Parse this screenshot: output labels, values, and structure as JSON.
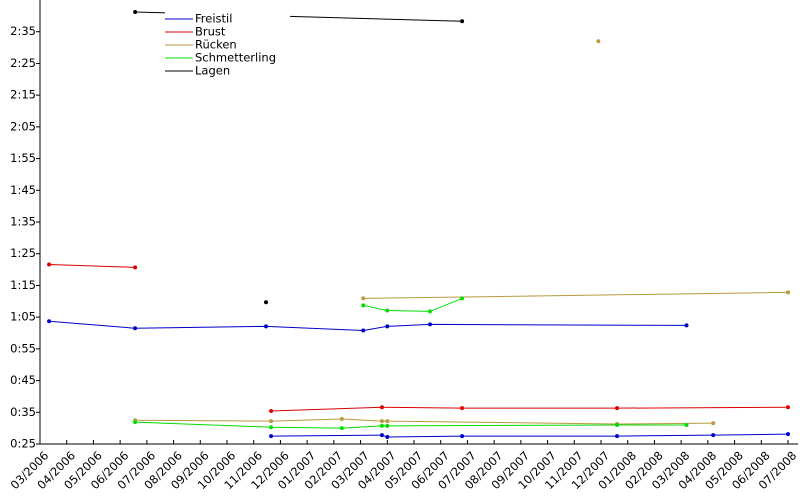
{
  "chart_data": {
    "type": "line",
    "xlim": [
      0,
      28
    ],
    "ylim": [
      25,
      165
    ],
    "xticks": [
      {
        "value": 0,
        "label": "03/2006"
      },
      {
        "value": 1,
        "label": "04/2006"
      },
      {
        "value": 2,
        "label": "05/2006"
      },
      {
        "value": 3,
        "label": "06/2006"
      },
      {
        "value": 4,
        "label": "07/2006"
      },
      {
        "value": 5,
        "label": "08/2006"
      },
      {
        "value": 6,
        "label": "09/2006"
      },
      {
        "value": 7,
        "label": "10/2006"
      },
      {
        "value": 8,
        "label": "11/2006"
      },
      {
        "value": 9,
        "label": "12/2006"
      },
      {
        "value": 10,
        "label": "01/2007"
      },
      {
        "value": 11,
        "label": "02/2007"
      },
      {
        "value": 12,
        "label": "03/2007"
      },
      {
        "value": 13,
        "label": "04/2007"
      },
      {
        "value": 14,
        "label": "05/2007"
      },
      {
        "value": 15,
        "label": "06/2007"
      },
      {
        "value": 16,
        "label": "07/2007"
      },
      {
        "value": 17,
        "label": "08/2007"
      },
      {
        "value": 18,
        "label": "09/2007"
      },
      {
        "value": 19,
        "label": "10/2007"
      },
      {
        "value": 20,
        "label": "11/2007"
      },
      {
        "value": 21,
        "label": "12/2007"
      },
      {
        "value": 22,
        "label": "01/2008"
      },
      {
        "value": 23,
        "label": "02/2008"
      },
      {
        "value": 24,
        "label": "03/2008"
      },
      {
        "value": 25,
        "label": "04/2008"
      },
      {
        "value": 26,
        "label": "05/2008"
      },
      {
        "value": 27,
        "label": "06/2008"
      },
      {
        "value": 28,
        "label": "07/2008"
      }
    ],
    "yticks": [
      {
        "value": 25,
        "label": "0:25"
      },
      {
        "value": 35,
        "label": "0:35"
      },
      {
        "value": 45,
        "label": "0:45"
      },
      {
        "value": 55,
        "label": "0:55"
      },
      {
        "value": 65,
        "label": "1:05"
      },
      {
        "value": 75,
        "label": "1:15"
      },
      {
        "value": 85,
        "label": "1:25"
      },
      {
        "value": 95,
        "label": "1:35"
      },
      {
        "value": 105,
        "label": "1:45"
      },
      {
        "value": 115,
        "label": "1:55"
      },
      {
        "value": 125,
        "label": "2:05"
      },
      {
        "value": 135,
        "label": "2:15"
      },
      {
        "value": 145,
        "label": "2:25"
      },
      {
        "value": 155,
        "label": "2:35"
      }
    ],
    "legend": "upper-left",
    "series": [
      {
        "name": "Freistil",
        "color": "#0000cc",
        "segments": [
          {
            "x": [
              0.34,
              3.56,
              8.46,
              12.1,
              13.0,
              14.6,
              24.2
            ],
            "values": [
              63.7,
              61.5,
              62.1,
              60.8,
              62.1,
              62.7,
              62.4
            ]
          },
          {
            "x": [
              8.65,
              12.8,
              13.0,
              15.8,
              21.6,
              25.2,
              28.0
            ],
            "values": [
              27.5,
              27.8,
              27.2,
              27.5,
              27.5,
              27.8,
              28.1
            ]
          }
        ]
      },
      {
        "name": "Brust",
        "color": "#dd0000",
        "segments": [
          {
            "x": [
              0.34,
              3.56
            ],
            "values": [
              81.6,
              80.7
            ]
          },
          {
            "x": [
              8.65,
              12.8,
              15.8,
              21.6,
              28.0
            ],
            "values": [
              35.4,
              36.6,
              36.3,
              36.3,
              36.6
            ]
          }
        ]
      },
      {
        "name": "Rücken",
        "color": "#b89a40",
        "segments": [
          {
            "x": [
              20.9
            ],
            "values": [
              152.0
            ]
          },
          {
            "x": [
              12.1,
              28.0
            ],
            "values": [
              70.9,
              72.8
            ]
          },
          {
            "x": [
              3.56,
              8.65,
              11.3,
              12.8,
              13.0,
              21.6,
              25.2
            ],
            "values": [
              32.5,
              32.2,
              32.9,
              32.2,
              32.2,
              31.3,
              31.6
            ]
          }
        ]
      },
      {
        "name": "Schmetterling",
        "color": "#00dd00",
        "segments": [
          {
            "x": [
              12.1,
              13.0,
              14.6,
              15.8
            ],
            "values": [
              68.7,
              67.1,
              66.8,
              70.9
            ]
          },
          {
            "x": [
              3.56,
              8.65,
              11.3,
              12.8,
              13.0,
              21.6,
              24.2
            ],
            "values": [
              31.9,
              30.3,
              30.0,
              30.7,
              30.7,
              31.0,
              31.0
            ]
          }
        ]
      },
      {
        "name": "Lagen",
        "color": "#000000",
        "segments": [
          {
            "x": [
              8.46
            ],
            "values": [
              69.7
            ]
          },
          {
            "x": [
              3.56,
              15.8
            ],
            "values": [
              161.2,
              158.3
            ]
          }
        ]
      }
    ]
  }
}
